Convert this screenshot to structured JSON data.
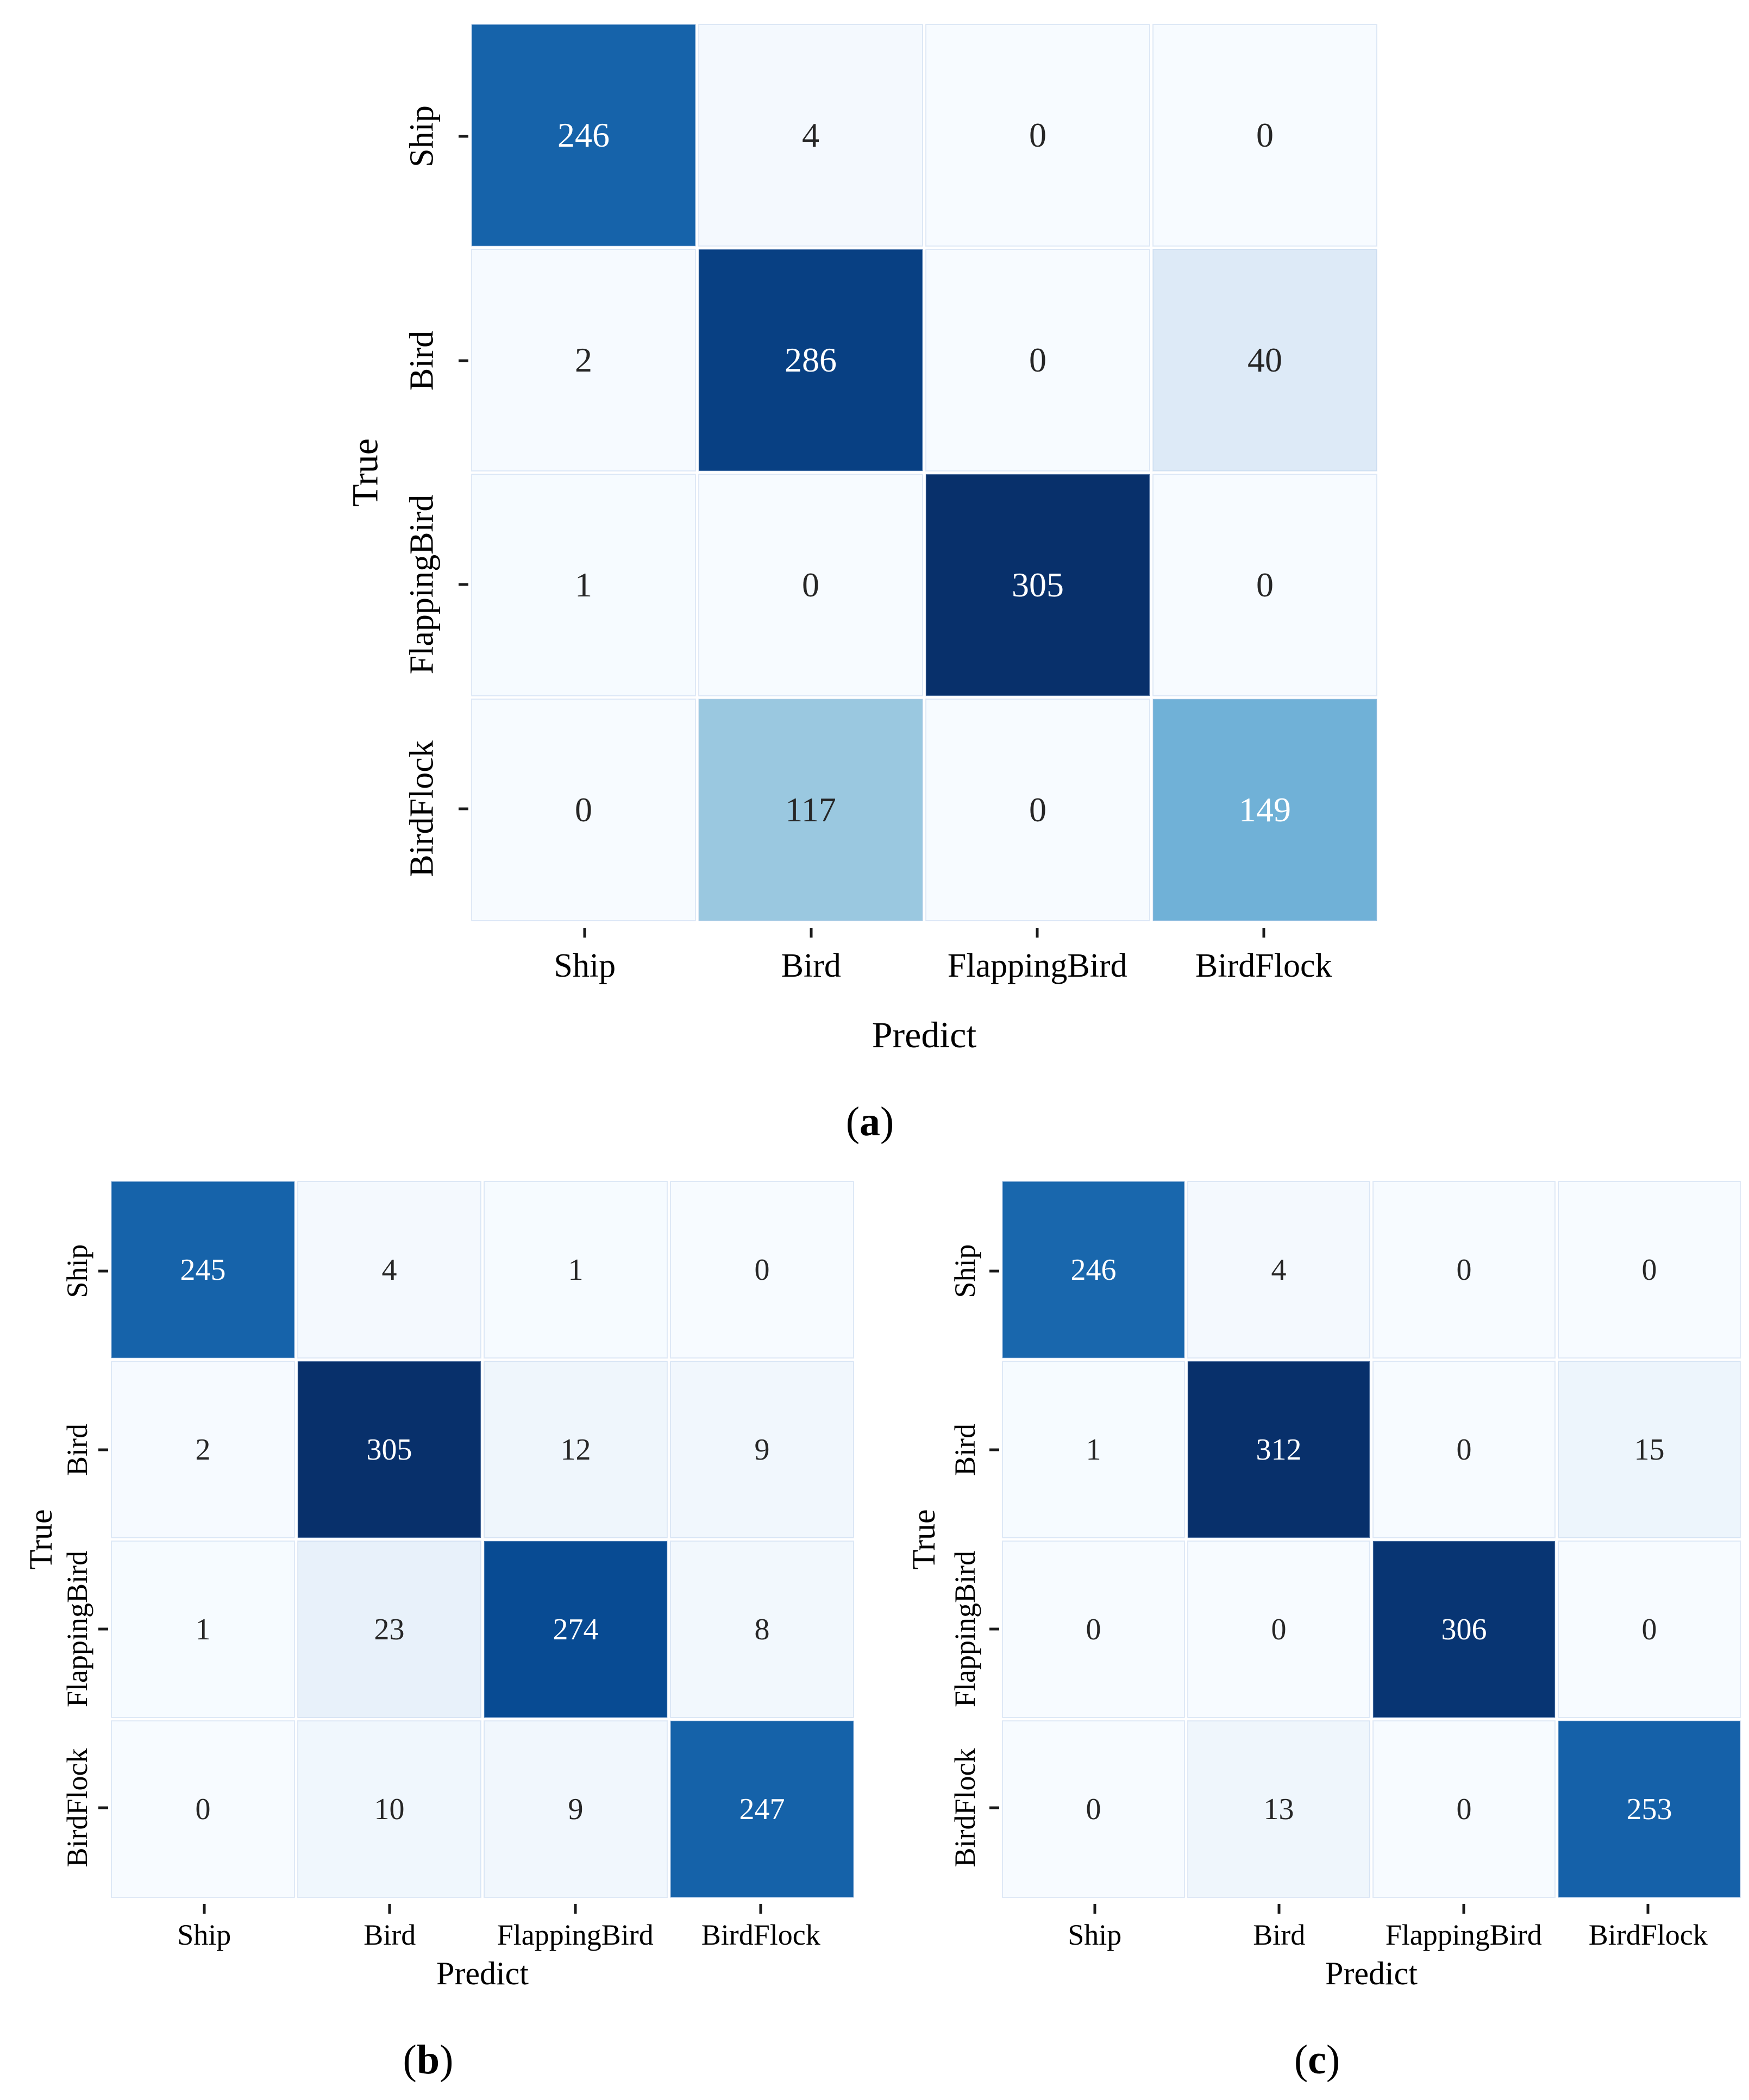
{
  "palette": {
    "colormap_name": "Blues",
    "colormap_stops": [
      "#f7fbff",
      "#deebf7",
      "#c6dbef",
      "#9ecae1",
      "#6baed6",
      "#4292c6",
      "#2171b5",
      "#08519c",
      "#08306b"
    ],
    "dark_text": "#262626",
    "light_text": "#ffffff",
    "tick_color": "#1a1a1a",
    "background": "#ffffff"
  },
  "chart_data": [
    {
      "type": "heatmap",
      "caption": {
        "open": "(",
        "letter": "a",
        "close": ")"
      },
      "xlabel": "Predict",
      "ylabel": "True",
      "x_categories": [
        "Ship",
        "Bird",
        "FlappingBird",
        "BirdFlock"
      ],
      "y_categories": [
        "Ship",
        "Bird",
        "FlappingBird",
        "BirdFlock"
      ],
      "values": [
        [
          246,
          4,
          0,
          0
        ],
        [
          2,
          286,
          0,
          40
        ],
        [
          1,
          0,
          305,
          0
        ],
        [
          0,
          117,
          0,
          149
        ]
      ],
      "vmin": 0,
      "grid": false,
      "legend": "none"
    },
    {
      "type": "heatmap",
      "caption": {
        "open": "(",
        "letter": "b",
        "close": ")"
      },
      "xlabel": "Predict",
      "ylabel": "True",
      "x_categories": [
        "Ship",
        "Bird",
        "FlappingBird",
        "BirdFlock"
      ],
      "y_categories": [
        "Ship",
        "Bird",
        "FlappingBird",
        "BirdFlock"
      ],
      "values": [
        [
          245,
          4,
          1,
          0
        ],
        [
          2,
          305,
          12,
          9
        ],
        [
          1,
          23,
          274,
          8
        ],
        [
          0,
          10,
          9,
          247
        ]
      ],
      "vmin": 0,
      "grid": false,
      "legend": "none"
    },
    {
      "type": "heatmap",
      "caption": {
        "open": "(",
        "letter": "c",
        "close": ")"
      },
      "xlabel": "Predict",
      "ylabel": "True",
      "x_categories": [
        "Ship",
        "Bird",
        "FlappingBird",
        "BirdFlock"
      ],
      "y_categories": [
        "Ship",
        "Bird",
        "FlappingBird",
        "BirdFlock"
      ],
      "values": [
        [
          246,
          4,
          0,
          0
        ],
        [
          1,
          312,
          0,
          15
        ],
        [
          0,
          0,
          306,
          0
        ],
        [
          0,
          13,
          0,
          253
        ]
      ],
      "vmin": 0,
      "grid": false,
      "legend": "none"
    }
  ]
}
